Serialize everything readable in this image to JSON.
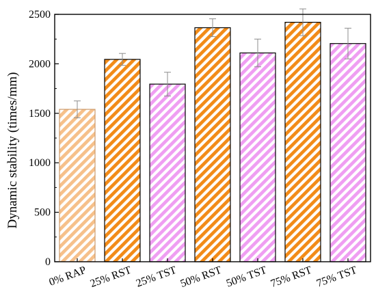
{
  "chart_data": {
    "type": "bar",
    "title": "",
    "xlabel": "",
    "ylabel": "Dynamic stability (times/mm)",
    "ylim": [
      0,
      2500
    ],
    "yticks": [
      0,
      500,
      1000,
      1500,
      2000,
      2500
    ],
    "categories": [
      "0% RAP",
      "25% RST",
      "25% TST",
      "50% RST",
      "50% TST",
      "75% RST",
      "75% TST"
    ],
    "values": [
      1540,
      2045,
      1795,
      2365,
      2110,
      2420,
      2205
    ],
    "errors": [
      85,
      60,
      120,
      90,
      140,
      135,
      155
    ],
    "bar_styles": [
      "light-orange",
      "orange",
      "pink",
      "orange",
      "pink",
      "orange",
      "pink"
    ],
    "grid": false,
    "legend": "none"
  },
  "colors": {
    "light-orange": "#f6c08a",
    "orange": "#f28b18",
    "pink": "#ef9ef2",
    "error_bar": "#8c8c8c",
    "axis": "#000000"
  }
}
